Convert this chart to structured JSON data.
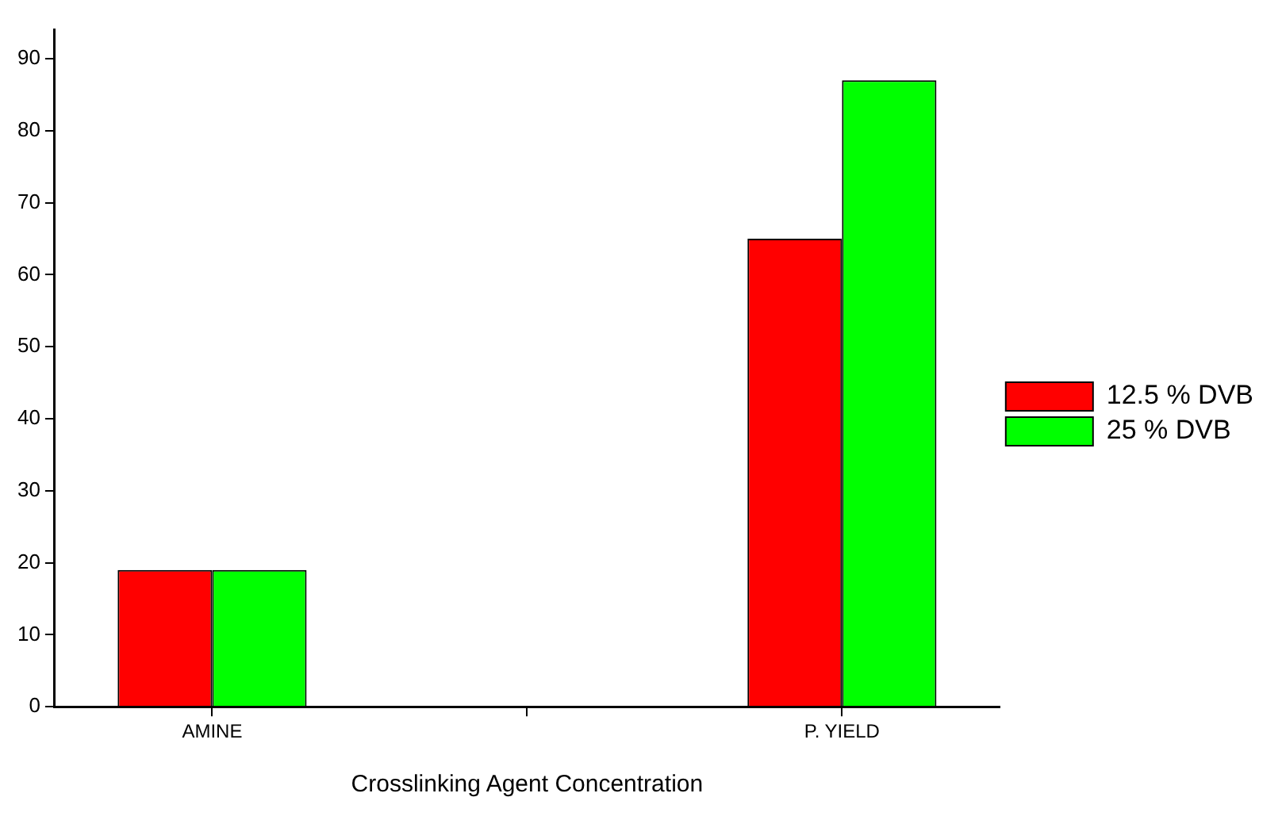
{
  "chart_data": {
    "type": "bar",
    "xlabel": "Crosslinking Agent Concentration",
    "categories": [
      "AMINE",
      null,
      "P. YIELD"
    ],
    "series": [
      {
        "name": "12.5 % DVB",
        "color": "#ff0000",
        "values": [
          19,
          null,
          65
        ]
      },
      {
        "name": "25 % DVB",
        "color": "#00ff00",
        "values": [
          19,
          null,
          87
        ]
      }
    ],
    "ylim": [
      0,
      94
    ],
    "yticks": [
      0,
      10,
      20,
      30,
      40,
      50,
      60,
      70,
      80,
      90
    ],
    "grid": false,
    "legend": "right"
  }
}
